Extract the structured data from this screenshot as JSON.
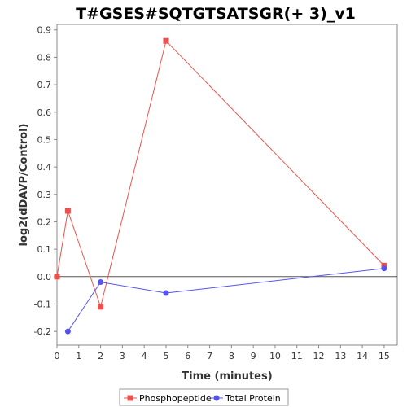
{
  "chart_data": {
    "type": "line",
    "title": "T#GSES#SQTGTSATSGR(+ 3)_v1",
    "xlabel": "Time (minutes)",
    "ylabel": "log2(dDAVP/Control)",
    "xlim": [
      0,
      15.6
    ],
    "ylim": [
      -0.25,
      0.92
    ],
    "xticks": [
      0,
      1,
      2,
      3,
      4,
      5,
      6,
      7,
      8,
      9,
      10,
      11,
      12,
      13,
      14,
      15
    ],
    "yticks": [
      -0.2,
      -0.1,
      0.0,
      0.1,
      0.2,
      0.3,
      0.4,
      0.5,
      0.6,
      0.7,
      0.8,
      0.9
    ],
    "ytick_labels": [
      "-0.2",
      "-0.1",
      "0.0",
      "0.1",
      "0.2",
      "0.3",
      "0.4",
      "0.5",
      "0.6",
      "0.7",
      "0.8",
      "0.9"
    ],
    "zero_line": true,
    "grid": false,
    "legend_position": "bottom",
    "series": [
      {
        "name": "Phosphopeptide",
        "color": "#e8534f",
        "marker": "square",
        "x": [
          0,
          0.5,
          2,
          5,
          15
        ],
        "y": [
          0.0,
          0.24,
          -0.11,
          0.86,
          0.04
        ]
      },
      {
        "name": "Total Protein",
        "color": "#5555ee",
        "marker": "circle",
        "x": [
          0.5,
          2,
          5,
          15
        ],
        "y": [
          -0.2,
          -0.02,
          -0.06,
          0.03
        ]
      }
    ]
  }
}
